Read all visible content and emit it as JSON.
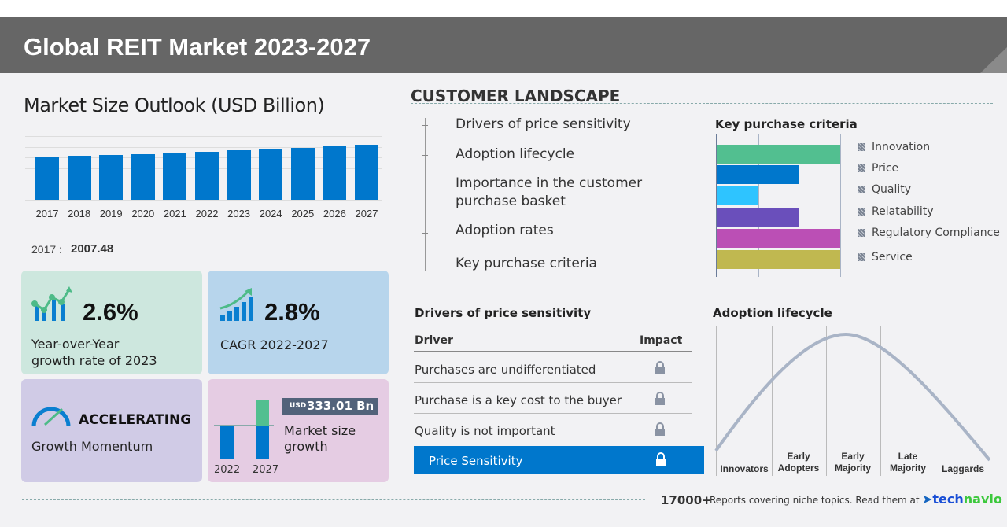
{
  "header": {
    "title": "Global REIT Market 2023-2027"
  },
  "market_size": {
    "title": "Market Size Outlook (USD Billion)",
    "base_year_label": "2017 :",
    "base_year_value": "2007.48"
  },
  "chart_data": {
    "type": "bar",
    "title": "Market Size Outlook (USD Billion)",
    "categories": [
      "2017",
      "2018",
      "2019",
      "2020",
      "2021",
      "2022",
      "2023",
      "2024",
      "2025",
      "2026",
      "2027"
    ],
    "values": [
      2007.48,
      2057,
      2106,
      2155,
      2204,
      2254,
      2315,
      2377,
      2438,
      2524,
      2586
    ],
    "ylim": [
      0,
      3000
    ],
    "grid": true,
    "color": "#0077cc"
  },
  "cards": {
    "yoy": {
      "value": "2.6%",
      "label_line1": "Year-over-Year",
      "label_line2": "growth rate of 2023",
      "bg": "#cde7de"
    },
    "cagr": {
      "value": "2.8%",
      "label": "CAGR 2022-2027",
      "bg": "#b7d5ec"
    },
    "momentum": {
      "value": "ACCELERATING",
      "label": "Growth Momentum",
      "bg": "#d0cbe6"
    },
    "growth": {
      "currency": "USD",
      "value": "333.01 Bn",
      "label_line1": "Market size",
      "label_line2": "growth",
      "year_start": "2022",
      "year_end": "2027",
      "bg": "#e5cce3"
    }
  },
  "customer_landscape": {
    "title": "CUSTOMER LANDSCAPE",
    "items": [
      "Drivers of price sensitivity",
      "Adoption lifecycle",
      "Importance in the customer",
      "purchase basket",
      "Adoption rates",
      "Key purchase criteria"
    ]
  },
  "key_purchase_criteria": {
    "title": "Key purchase criteria",
    "scale_max": 3,
    "items": [
      {
        "label": "Innovation",
        "value": 3,
        "color": "#52bf90"
      },
      {
        "label": "Price",
        "value": 2,
        "color": "#0077cc"
      },
      {
        "label": "Quality",
        "value": 1,
        "color": "#2ec4ff"
      },
      {
        "label": "Relatability",
        "value": 2,
        "color": "#6a4fbb"
      },
      {
        "label": "Regulatory Compliance",
        "value": 3,
        "color": "#bb4fb5"
      },
      {
        "label": "Service",
        "value": 3,
        "color": "#c0b850"
      }
    ]
  },
  "drivers": {
    "title": "Drivers of price sensitivity",
    "col_driver": "Driver",
    "col_impact": "Impact",
    "rows": [
      "Purchases are undifferentiated",
      "Purchase is a key cost to the buyer",
      "Quality is not important"
    ],
    "highlight": "Price Sensitivity",
    "highlight_color": "#0077cc"
  },
  "adoption": {
    "title": "Adoption lifecycle",
    "stages": [
      [
        "Innovators",
        ""
      ],
      [
        "Early",
        "Adopters"
      ],
      [
        "Early",
        "Majority"
      ],
      [
        "Late",
        "Majority"
      ],
      [
        "Laggards",
        ""
      ]
    ]
  },
  "footer": {
    "count": "17000+",
    "text": "Reports covering niche topics. Read them at",
    "brand_tech": "tech",
    "brand_navio": "navio"
  }
}
